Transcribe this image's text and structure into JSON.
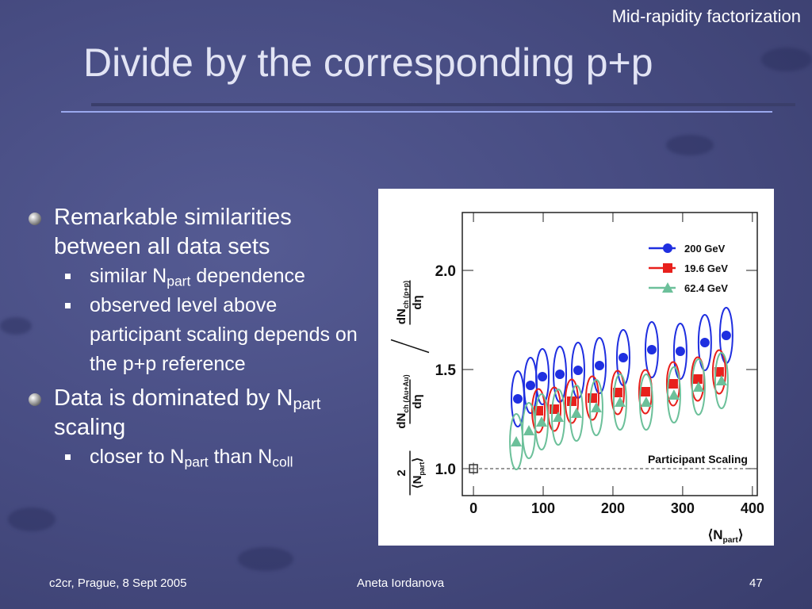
{
  "header": {
    "corner": "Mid-rapidity factorization",
    "title": "Divide by the corresponding p+p"
  },
  "bullets": [
    {
      "segments": [
        {
          "text": "Remarkable similarities between all data sets"
        }
      ],
      "children": [
        {
          "segments": [
            {
              "text": "similar N"
            },
            {
              "sub": "part"
            },
            {
              "text": " dependence"
            }
          ]
        },
        {
          "segments": [
            {
              "text": "observed level above participant scaling depends on the p+p reference"
            }
          ]
        }
      ]
    },
    {
      "segments": [
        {
          "text": "Data is dominated by N"
        },
        {
          "sub": "part"
        },
        {
          "text": " scaling"
        }
      ],
      "children": [
        {
          "segments": [
            {
              "text": "closer to N"
            },
            {
              "sub": "part"
            },
            {
              "text": " than N"
            },
            {
              "sub": "coll"
            }
          ]
        }
      ]
    }
  ],
  "footer": {
    "left": "c2cr, Prague, 8 Sept 2005",
    "center": "Aneta Iordanova",
    "right": "47"
  },
  "chart_data": {
    "type": "scatter",
    "xlim": [
      -16,
      407
    ],
    "xticks": [
      0,
      100,
      200,
      300,
      400
    ],
    "ylim": [
      0.864,
      2.292
    ],
    "yticks": [
      {
        "value": 1,
        "label": "1.0"
      },
      {
        "value": 1.5,
        "label": "1.5"
      },
      {
        "value": 2,
        "label": "2.0"
      }
    ],
    "x_label": [
      {
        "text": "⟨N"
      },
      {
        "sub": "part"
      },
      {
        "text": "⟩"
      }
    ],
    "y_label": {
      "norm_num": "2",
      "norm_den": [
        {
          "text": "⟨N"
        },
        {
          "sub": "part"
        },
        {
          "text": "⟩"
        }
      ],
      "auau_num": [
        {
          "text": "dN"
        },
        {
          "sub": "ch (Au+Au)"
        }
      ],
      "auau_den": "dη",
      "pp_num": [
        {
          "text": "dN"
        },
        {
          "sub": "ch (p+p)"
        }
      ],
      "pp_den": "dη"
    },
    "reference_line": {
      "y": 1,
      "label": "Participant Scaling"
    },
    "reference_point": {
      "x": 0,
      "y": 1,
      "yerr": 0.03
    },
    "legend": "upper right",
    "series": [
      {
        "name": "200 GeV",
        "color": "#1f2fe0",
        "marker": "circle",
        "x": [
          63.6,
          81.8,
          98.9,
          123.9,
          150,
          180.7,
          214.8,
          255.7,
          296.6,
          331.8,
          362.5
        ],
        "values": [
          1.352,
          1.42,
          1.464,
          1.476,
          1.496,
          1.52,
          1.56,
          1.6,
          1.592,
          1.636,
          1.672
        ],
        "yerr": [
          0.14,
          0.14,
          0.14,
          0.14,
          0.14,
          0.14,
          0.14,
          0.14,
          0.14,
          0.14,
          0.14
        ]
      },
      {
        "name": "19.6 GeV",
        "color": "#e8201c",
        "marker": "square",
        "x": [
          93.2,
          115.9,
          140.9,
          170.5,
          206.8,
          246.6,
          286.4,
          321.6,
          352.3
        ],
        "values": [
          1.292,
          1.3,
          1.34,
          1.356,
          1.384,
          1.388,
          1.428,
          1.452,
          1.488
        ],
        "yerr": [
          0.11,
          0.11,
          0.11,
          0.11,
          0.11,
          0.11,
          0.11,
          0.11,
          0.11
        ]
      },
      {
        "name": "62.4 GeV",
        "color": "#6cc09a",
        "marker": "triangle",
        "x": [
          61.4,
          79.5,
          97.7,
          121.6,
          147.7,
          176.1,
          210.2,
          247.7,
          287.5,
          322.7,
          355.7
        ],
        "values": [
          1.136,
          1.192,
          1.236,
          1.26,
          1.28,
          1.308,
          1.336,
          1.336,
          1.372,
          1.412,
          1.444
        ],
        "yerr": [
          0.14,
          0.14,
          0.14,
          0.14,
          0.14,
          0.14,
          0.14,
          0.14,
          0.14,
          0.14,
          0.14
        ]
      }
    ]
  }
}
